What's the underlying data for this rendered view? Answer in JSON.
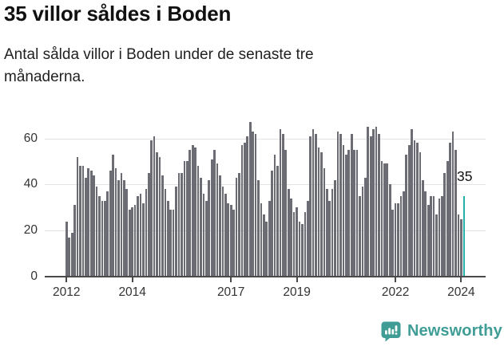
{
  "header": {
    "title": "35 villor såldes i Boden",
    "subtitle_line1": "Antal sålda villor i Boden under de senaste tre",
    "subtitle_line2": "månaderna."
  },
  "chart": {
    "y_axis": {
      "ticks": [
        0,
        20,
        40,
        60
      ]
    },
    "x_axis": {
      "ticks": [
        {
          "label": "2012",
          "month_index": 0
        },
        {
          "label": "2014",
          "month_index": 24
        },
        {
          "label": "2017",
          "month_index": 60
        },
        {
          "label": "2019",
          "month_index": 84
        },
        {
          "label": "2022",
          "month_index": 120
        },
        {
          "label": "2024",
          "month_index": 144
        }
      ]
    },
    "annotation_label": "35",
    "colors": {
      "bar": "#6c6c74",
      "highlight": "#24b1a8",
      "gridline": "#e3e3e3",
      "axis": "#4a4a4a",
      "tick_text": "#333333",
      "logo": "#3f9d96"
    }
  },
  "chart_data": {
    "type": "bar",
    "title": "35 villor såldes i Boden",
    "subtitle": "Antal sålda villor i Boden under de senaste tre månaderna.",
    "unit": "sålda villor (rullande 3 månader)",
    "x_start_month": "2012-01",
    "x_end_month": "2024-02",
    "ylim": [
      0,
      70
    ],
    "grid": true,
    "highlight_last_value": 35,
    "year_tick_labels": [
      "2012",
      "2014",
      "2017",
      "2019",
      "2022",
      "2024"
    ],
    "values": [
      24,
      17,
      19,
      31,
      52,
      48,
      48,
      43,
      47,
      46,
      44,
      39,
      35,
      33,
      33,
      37,
      46,
      53,
      47,
      42,
      45,
      42,
      38,
      29,
      30,
      31,
      35,
      36,
      32,
      38,
      45,
      59,
      61,
      54,
      52,
      44,
      38,
      33,
      29,
      29,
      39,
      45,
      45,
      50,
      50,
      55,
      57,
      56,
      48,
      43,
      36,
      33,
      42,
      51,
      55,
      49,
      44,
      39,
      36,
      32,
      31,
      29,
      43,
      45,
      57,
      58,
      61,
      67,
      63,
      62,
      42,
      32,
      27,
      24,
      33,
      46,
      53,
      48,
      64,
      62,
      55,
      38,
      34,
      28,
      30,
      24,
      23,
      28,
      33,
      61,
      64,
      62,
      56,
      54,
      47,
      38,
      33,
      38,
      42,
      63,
      62,
      57,
      53,
      55,
      62,
      55,
      55,
      35,
      39,
      43,
      65,
      61,
      64,
      65,
      62,
      50,
      49,
      49,
      40,
      29,
      32,
      32,
      35,
      37,
      53,
      57,
      64,
      59,
      58,
      54,
      42,
      37,
      31,
      35,
      35,
      27,
      34,
      35,
      45,
      50,
      58,
      63,
      55,
      27,
      25,
      35
    ]
  },
  "footer": {
    "brand": "Newsworthy"
  }
}
